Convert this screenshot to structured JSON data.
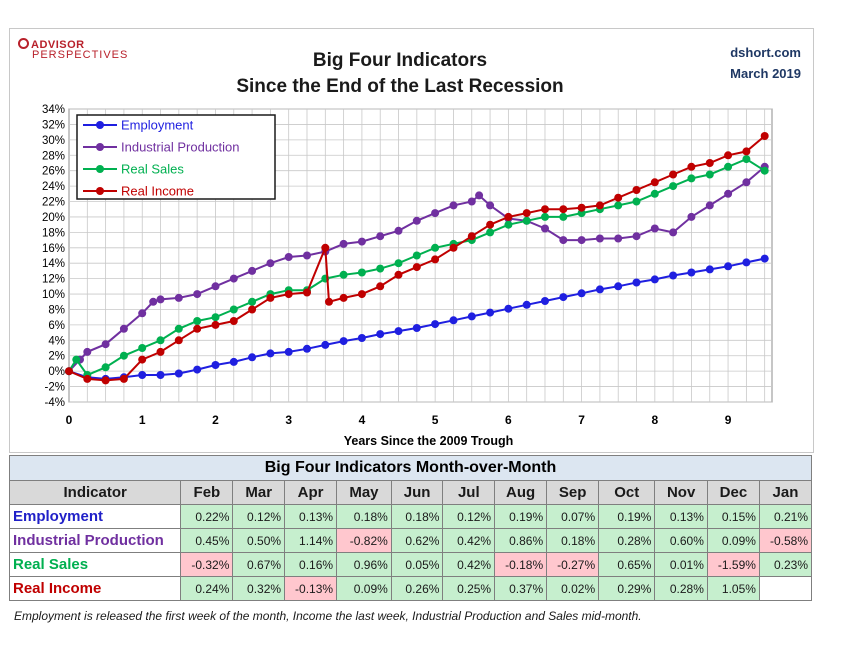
{
  "header": {
    "logo_line1": "ADVISOR",
    "logo_line2": "PERSPECTIVES",
    "title_line1": "Big Four Indicators",
    "title_line2": "Since the End of the Last Recession",
    "source_line1": "dshort.com",
    "source_line2": "March 2019"
  },
  "chart_data": {
    "type": "line",
    "xlabel": "Years Since the 2009 Trough",
    "ylabel": "",
    "xlim": [
      0,
      9.6
    ],
    "ylim": [
      -4,
      34
    ],
    "x_ticks": [
      "0",
      "1",
      "2",
      "3",
      "4",
      "5",
      "6",
      "7",
      "8",
      "9"
    ],
    "y_ticks": [
      "-4%",
      "-2%",
      "0%",
      "2%",
      "4%",
      "6%",
      "8%",
      "10%",
      "12%",
      "14%",
      "16%",
      "18%",
      "20%",
      "22%",
      "24%",
      "26%",
      "28%",
      "30%",
      "32%",
      "34%"
    ],
    "grid": true,
    "legend_position": "top-left",
    "series": [
      {
        "name": "Employment",
        "color": "#1f1fe0",
        "points": [
          [
            0,
            0
          ],
          [
            0.25,
            -0.8
          ],
          [
            0.5,
            -1.0
          ],
          [
            0.75,
            -0.8
          ],
          [
            1,
            -0.5
          ],
          [
            1.25,
            -0.5
          ],
          [
            1.5,
            -0.3
          ],
          [
            1.75,
            0.2
          ],
          [
            2,
            0.8
          ],
          [
            2.25,
            1.2
          ],
          [
            2.5,
            1.8
          ],
          [
            2.75,
            2.3
          ],
          [
            3,
            2.5
          ],
          [
            3.25,
            2.9
          ],
          [
            3.5,
            3.4
          ],
          [
            3.75,
            3.9
          ],
          [
            4,
            4.3
          ],
          [
            4.25,
            4.8
          ],
          [
            4.5,
            5.2
          ],
          [
            4.75,
            5.6
          ],
          [
            5,
            6.1
          ],
          [
            5.25,
            6.6
          ],
          [
            5.5,
            7.1
          ],
          [
            5.75,
            7.6
          ],
          [
            6,
            8.1
          ],
          [
            6.25,
            8.6
          ],
          [
            6.5,
            9.1
          ],
          [
            6.75,
            9.6
          ],
          [
            7,
            10.1
          ],
          [
            7.25,
            10.6
          ],
          [
            7.5,
            11.0
          ],
          [
            7.75,
            11.5
          ],
          [
            8,
            11.9
          ],
          [
            8.25,
            12.4
          ],
          [
            8.5,
            12.8
          ],
          [
            8.75,
            13.2
          ],
          [
            9,
            13.6
          ],
          [
            9.25,
            14.1
          ],
          [
            9.5,
            14.6
          ]
        ]
      },
      {
        "name": "Industrial Production",
        "color": "#7030a0",
        "points": [
          [
            0,
            0
          ],
          [
            0.15,
            1.5
          ],
          [
            0.25,
            2.5
          ],
          [
            0.5,
            3.5
          ],
          [
            0.75,
            5.5
          ],
          [
            1,
            7.5
          ],
          [
            1.15,
            9.0
          ],
          [
            1.25,
            9.3
          ],
          [
            1.5,
            9.5
          ],
          [
            1.75,
            10.0
          ],
          [
            2,
            11.0
          ],
          [
            2.25,
            12.0
          ],
          [
            2.5,
            13.0
          ],
          [
            2.75,
            14.0
          ],
          [
            3,
            14.8
          ],
          [
            3.25,
            15.0
          ],
          [
            3.5,
            15.5
          ],
          [
            3.75,
            16.5
          ],
          [
            4,
            16.8
          ],
          [
            4.25,
            17.5
          ],
          [
            4.5,
            18.2
          ],
          [
            4.75,
            19.5
          ],
          [
            5,
            20.5
          ],
          [
            5.25,
            21.5
          ],
          [
            5.5,
            22.0
          ],
          [
            5.6,
            22.8
          ],
          [
            5.75,
            21.5
          ],
          [
            6,
            19.8
          ],
          [
            6.25,
            19.5
          ],
          [
            6.5,
            18.5
          ],
          [
            6.75,
            17.0
          ],
          [
            7,
            17.0
          ],
          [
            7.25,
            17.2
          ],
          [
            7.5,
            17.2
          ],
          [
            7.75,
            17.5
          ],
          [
            8,
            18.5
          ],
          [
            8.25,
            18.0
          ],
          [
            8.5,
            20.0
          ],
          [
            8.75,
            21.5
          ],
          [
            9,
            23.0
          ],
          [
            9.25,
            24.5
          ],
          [
            9.5,
            26.5
          ]
        ]
      },
      {
        "name": "Real Sales",
        "color": "#00b050",
        "points": [
          [
            0,
            0
          ],
          [
            0.1,
            1.5
          ],
          [
            0.25,
            -0.5
          ],
          [
            0.5,
            0.5
          ],
          [
            0.75,
            2.0
          ],
          [
            1,
            3.0
          ],
          [
            1.25,
            4.0
          ],
          [
            1.5,
            5.5
          ],
          [
            1.75,
            6.5
          ],
          [
            2,
            7.0
          ],
          [
            2.25,
            8.0
          ],
          [
            2.5,
            9.0
          ],
          [
            2.75,
            10.0
          ],
          [
            3,
            10.5
          ],
          [
            3.25,
            10.5
          ],
          [
            3.5,
            12.0
          ],
          [
            3.75,
            12.5
          ],
          [
            4,
            12.8
          ],
          [
            4.25,
            13.3
          ],
          [
            4.5,
            14.0
          ],
          [
            4.75,
            15.0
          ],
          [
            5,
            16.0
          ],
          [
            5.25,
            16.5
          ],
          [
            5.5,
            17.0
          ],
          [
            5.75,
            18.0
          ],
          [
            6,
            19.0
          ],
          [
            6.25,
            19.5
          ],
          [
            6.5,
            20.0
          ],
          [
            6.75,
            20.0
          ],
          [
            7,
            20.5
          ],
          [
            7.25,
            21.0
          ],
          [
            7.5,
            21.5
          ],
          [
            7.75,
            22.0
          ],
          [
            8,
            23.0
          ],
          [
            8.25,
            24.0
          ],
          [
            8.5,
            25.0
          ],
          [
            8.75,
            25.5
          ],
          [
            9,
            26.5
          ],
          [
            9.25,
            27.5
          ],
          [
            9.5,
            26.0
          ]
        ]
      },
      {
        "name": "Real Income",
        "color": "#c00000",
        "points": [
          [
            0,
            0
          ],
          [
            0.25,
            -1.0
          ],
          [
            0.5,
            -1.2
          ],
          [
            0.75,
            -1.0
          ],
          [
            1,
            1.5
          ],
          [
            1.25,
            2.5
          ],
          [
            1.5,
            4.0
          ],
          [
            1.75,
            5.5
          ],
          [
            2,
            6.0
          ],
          [
            2.25,
            6.5
          ],
          [
            2.5,
            8.0
          ],
          [
            2.75,
            9.5
          ],
          [
            3,
            10.0
          ],
          [
            3.25,
            10.2
          ],
          [
            3.5,
            16.0
          ],
          [
            3.55,
            9.0
          ],
          [
            3.75,
            9.5
          ],
          [
            4,
            10.0
          ],
          [
            4.25,
            11.0
          ],
          [
            4.5,
            12.5
          ],
          [
            4.75,
            13.5
          ],
          [
            5,
            14.5
          ],
          [
            5.25,
            16.0
          ],
          [
            5.5,
            17.5
          ],
          [
            5.75,
            19.0
          ],
          [
            6,
            20.0
          ],
          [
            6.25,
            20.5
          ],
          [
            6.5,
            21.0
          ],
          [
            6.75,
            21.0
          ],
          [
            7,
            21.2
          ],
          [
            7.25,
            21.5
          ],
          [
            7.5,
            22.5
          ],
          [
            7.75,
            23.5
          ],
          [
            8,
            24.5
          ],
          [
            8.25,
            25.5
          ],
          [
            8.5,
            26.5
          ],
          [
            8.75,
            27.0
          ],
          [
            9,
            28.0
          ],
          [
            9.25,
            28.5
          ],
          [
            9.5,
            30.5
          ]
        ]
      }
    ]
  },
  "table": {
    "title": "Big Four Indicators Month-over-Month",
    "columns": [
      "Indicator",
      "Feb",
      "Mar",
      "Apr",
      "May",
      "Jun",
      "Jul",
      "Aug",
      "Sep",
      "Oct",
      "Nov",
      "Dec",
      "Jan"
    ],
    "rows": [
      {
        "name": "Employment",
        "color": "#2020c8",
        "values": [
          "0.22%",
          "0.12%",
          "0.13%",
          "0.18%",
          "0.18%",
          "0.12%",
          "0.19%",
          "0.07%",
          "0.19%",
          "0.13%",
          "0.15%",
          "0.21%"
        ]
      },
      {
        "name": "Industrial Production",
        "color": "#7030a0",
        "values": [
          "0.45%",
          "0.50%",
          "1.14%",
          "-0.82%",
          "0.62%",
          "0.42%",
          "0.86%",
          "0.18%",
          "0.28%",
          "0.60%",
          "0.09%",
          "-0.58%"
        ]
      },
      {
        "name": "Real Sales",
        "color": "#00b050",
        "values": [
          "-0.32%",
          "0.67%",
          "0.16%",
          "0.96%",
          "0.05%",
          "0.42%",
          "-0.18%",
          "-0.27%",
          "0.65%",
          "0.01%",
          "-1.59%",
          "0.23%"
        ]
      },
      {
        "name": "Real Income",
        "color": "#c00000",
        "values": [
          "0.24%",
          "0.32%",
          "-0.13%",
          "0.09%",
          "0.26%",
          "0.25%",
          "0.37%",
          "0.02%",
          "0.29%",
          "0.28%",
          "1.05%",
          ""
        ]
      }
    ]
  },
  "footnote": "Employment is released the first week of the month, Income the last week, Industrial Production and Sales mid-month."
}
